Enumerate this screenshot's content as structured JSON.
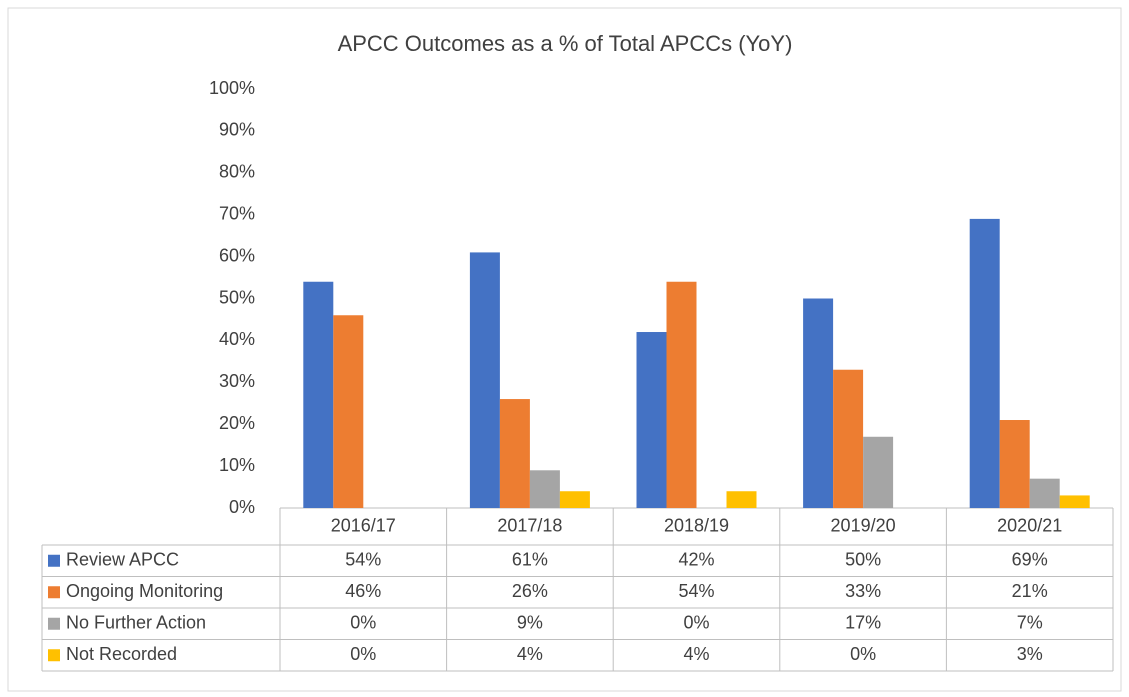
{
  "chart_data": {
    "type": "bar",
    "title": "APCC Outcomes as a % of Total APCCs (YoY)",
    "categories": [
      "2016/17",
      "2017/18",
      "2018/19",
      "2019/20",
      "2020/21"
    ],
    "series": [
      {
        "name": "Review APCC",
        "color": "#4472c4",
        "values": [
          54,
          61,
          42,
          50,
          69
        ],
        "value_labels": [
          "54%",
          "61%",
          "42%",
          "50%",
          "69%"
        ]
      },
      {
        "name": "Ongoing Monitoring",
        "color": "#ed7d31",
        "values": [
          46,
          26,
          54,
          33,
          21
        ],
        "value_labels": [
          "46%",
          "26%",
          "54%",
          "33%",
          "21%"
        ]
      },
      {
        "name": "No Further Action",
        "color": "#a5a5a5",
        "values": [
          0,
          9,
          0,
          17,
          7
        ],
        "value_labels": [
          "0%",
          "9%",
          "0%",
          "17%",
          "7%"
        ]
      },
      {
        "name": "Not Recorded",
        "color": "#ffc000",
        "values": [
          0,
          4,
          4,
          0,
          3
        ],
        "value_labels": [
          "0%",
          "4%",
          "4%",
          "0%",
          "3%"
        ]
      }
    ],
    "ylim": [
      0,
      100
    ],
    "yticks": [
      {
        "value": 0,
        "label": "0%"
      },
      {
        "value": 10,
        "label": "10%"
      },
      {
        "value": 20,
        "label": "20%"
      },
      {
        "value": 30,
        "label": "30%"
      },
      {
        "value": 40,
        "label": "40%"
      },
      {
        "value": 50,
        "label": "50%"
      },
      {
        "value": 60,
        "label": "60%"
      },
      {
        "value": 70,
        "label": "70%"
      },
      {
        "value": 80,
        "label": "80%"
      },
      {
        "value": 90,
        "label": "90%"
      },
      {
        "value": 100,
        "label": "100%"
      }
    ],
    "grid": false
  }
}
